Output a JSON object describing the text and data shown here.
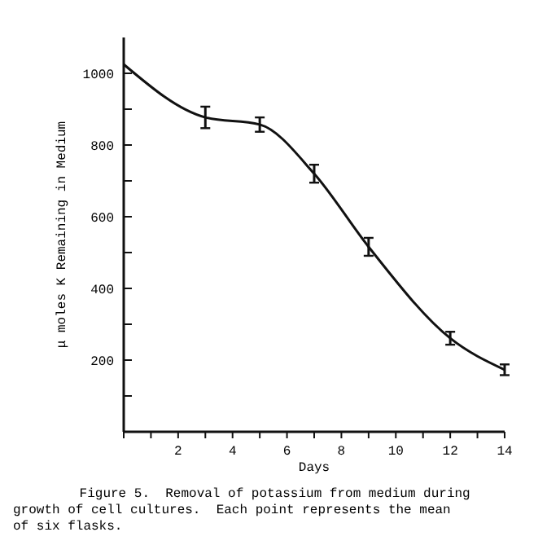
{
  "chart_data": {
    "type": "line",
    "xlabel": "Days",
    "ylabel": "μ moles K Remaining in Medium",
    "x": [
      0,
      3,
      5,
      7,
      9,
      12,
      14
    ],
    "series": [
      {
        "color": "#111111",
        "values": [
          1025,
          877,
          857,
          720,
          516,
          261,
          173
        ],
        "errors": [
          null,
          30,
          20,
          25,
          25,
          18,
          15
        ]
      }
    ],
    "xlim": [
      0,
      14
    ],
    "ylim": [
      0,
      1100
    ],
    "xticks": [
      {
        "value": 0,
        "label": null
      },
      {
        "value": 1,
        "label": null
      },
      2,
      {
        "value": 3,
        "label": null
      },
      4,
      {
        "value": 5,
        "label": null
      },
      6,
      {
        "value": 7,
        "label": null
      },
      8,
      {
        "value": 9,
        "label": null
      },
      10,
      {
        "value": 11,
        "label": null
      },
      12,
      {
        "value": 13,
        "label": null
      },
      14
    ],
    "yticks": [
      {
        "value": 0,
        "label": null
      },
      {
        "value": 100,
        "label": null
      },
      200,
      {
        "value": 300,
        "label": null
      },
      400,
      {
        "value": 500,
        "label": null
      },
      600,
      {
        "value": 700,
        "label": null
      },
      800,
      {
        "value": 900,
        "label": null
      },
      1000
    ],
    "marker": "none",
    "line_style": "solid",
    "annotations": [
      "Figure 5.  Removal of potassium from medium during growth of cell cultures.  Each point represents the mean of six flasks."
    ]
  }
}
